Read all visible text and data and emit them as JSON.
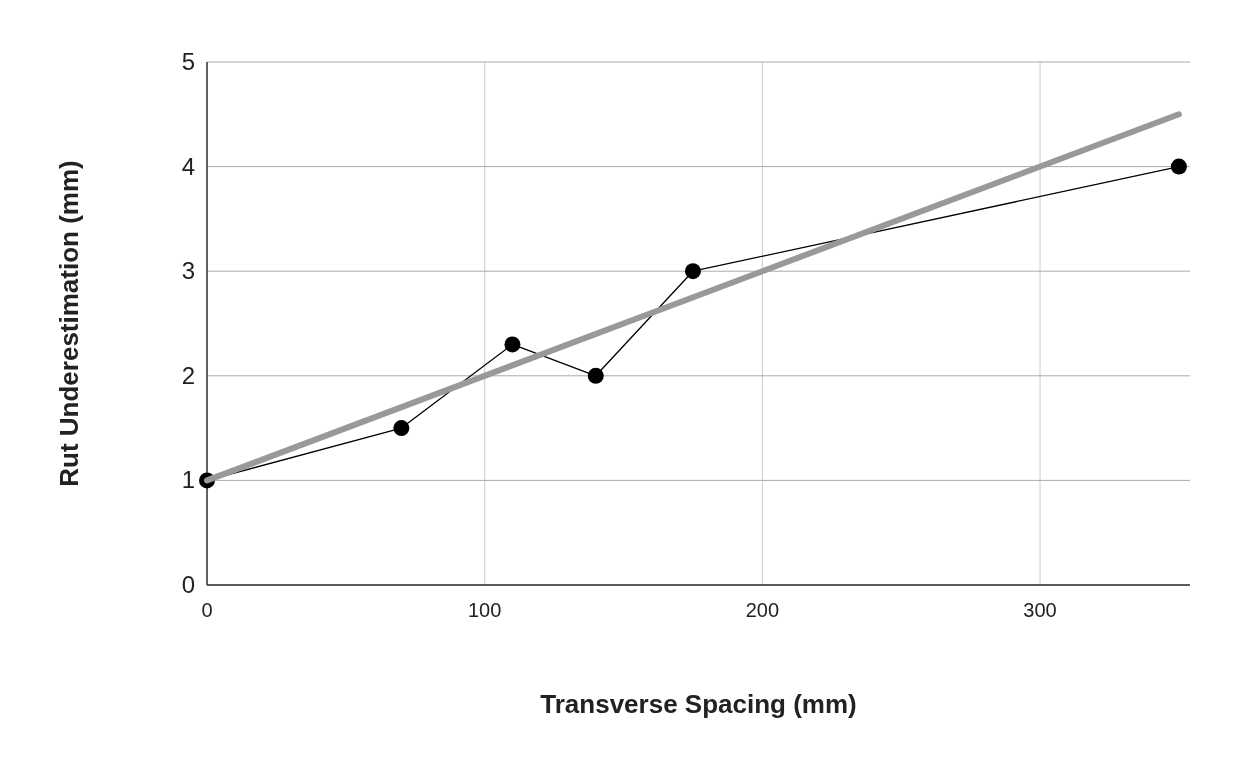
{
  "chart_data": {
    "type": "line",
    "xlabel": "Transverse Spacing (mm)",
    "ylabel": "Rut Underestimation (mm)",
    "xlim": [
      0,
      354
    ],
    "xticks": [
      0,
      100,
      200,
      300
    ],
    "ylim": [
      0,
      5
    ],
    "yticks": [
      0,
      1,
      2,
      3,
      4,
      5
    ],
    "grid": true,
    "series": [
      {
        "color": "#000000",
        "marker": "circle",
        "x": [
          0,
          70,
          110,
          140,
          175,
          350
        ],
        "values": [
          1,
          1.5,
          2.3,
          2,
          3,
          4
        ]
      },
      {
        "color": "#999999",
        "marker": "none",
        "x": [
          0,
          350
        ],
        "values": [
          1,
          4.5
        ]
      }
    ]
  }
}
